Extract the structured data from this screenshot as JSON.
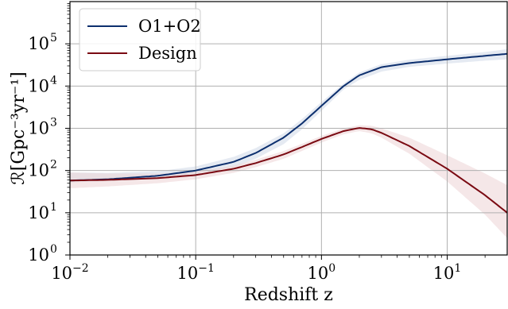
{
  "chart_data": {
    "type": "line",
    "xscale": "log",
    "yscale": "log",
    "xlim": [
      0.01,
      30
    ],
    "ylim": [
      1,
      1000000
    ],
    "grid": true,
    "legend_location": "top-left",
    "xlabel": "Redshift z",
    "ylabel": "ℛ[Gpc⁻³yr⁻¹]",
    "x_ticks": [
      {
        "base": "10",
        "exp": "−2",
        "value": 0.01
      },
      {
        "base": "10",
        "exp": "−1",
        "value": 0.1
      },
      {
        "base": "10",
        "exp": "0",
        "value": 1
      },
      {
        "base": "10",
        "exp": "1",
        "value": 10
      }
    ],
    "y_ticks": [
      {
        "base": "10",
        "exp": "0",
        "value": 1
      },
      {
        "base": "10",
        "exp": "1",
        "value": 10
      },
      {
        "base": "10",
        "exp": "2",
        "value": 100
      },
      {
        "base": "10",
        "exp": "3",
        "value": 1000
      },
      {
        "base": "10",
        "exp": "4",
        "value": 10000
      },
      {
        "base": "10",
        "exp": "5",
        "value": 100000
      }
    ],
    "series": [
      {
        "name": "O1+O2",
        "color": "#0c2f6e",
        "band_color": "#cfd9e8",
        "x": [
          0.01,
          0.02,
          0.05,
          0.1,
          0.2,
          0.3,
          0.5,
          0.7,
          1.0,
          1.5,
          2.0,
          3.0,
          5.0,
          10.0,
          20.0,
          30.0
        ],
        "y": [
          58,
          62,
          75,
          100,
          160,
          260,
          600,
          1300,
          3400,
          10000,
          18000,
          28000,
          35000,
          43000,
          52000,
          58000
        ],
        "y_low": [
          52,
          57,
          66,
          85,
          120,
          190,
          420,
          950,
          2600,
          8300,
          14000,
          22000,
          28500,
          34000,
          40000,
          43000
        ],
        "y_high": [
          90,
          88,
          96,
          125,
          210,
          340,
          760,
          1650,
          4200,
          11500,
          21000,
          33000,
          42000,
          52000,
          64000,
          75000
        ]
      },
      {
        "name": "Design",
        "color": "#7a0a12",
        "band_color": "#ecd3d5",
        "x": [
          0.01,
          0.02,
          0.05,
          0.1,
          0.2,
          0.3,
          0.5,
          0.7,
          1.0,
          1.5,
          2.0,
          2.5,
          3.0,
          5.0,
          10.0,
          20.0,
          30.0
        ],
        "y": [
          58,
          60,
          66,
          78,
          110,
          150,
          240,
          360,
          560,
          860,
          1020,
          950,
          780,
          380,
          110,
          26,
          10
        ],
        "y_low": [
          38,
          42,
          50,
          62,
          88,
          120,
          190,
          290,
          460,
          720,
          860,
          760,
          600,
          250,
          55,
          9,
          2.5
        ],
        "y_high": [
          90,
          85,
          85,
          95,
          130,
          180,
          290,
          430,
          660,
          1000,
          1180,
          1150,
          1000,
          600,
          230,
          85,
          45
        ]
      }
    ]
  }
}
